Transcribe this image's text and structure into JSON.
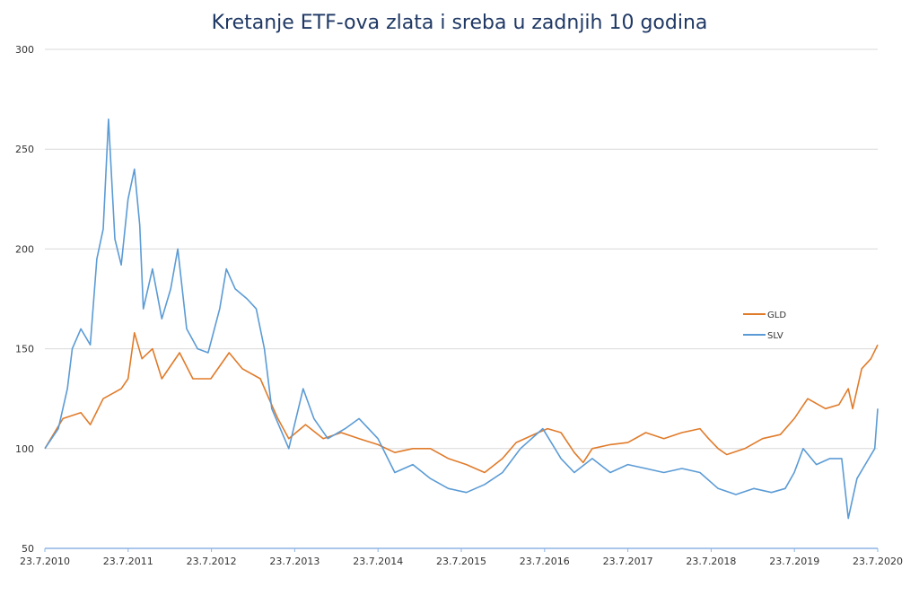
{
  "chart_data": {
    "type": "line",
    "title": "Kretanje ETF-ova zlata i sreba u zadnjih 10 godina",
    "xlabel": "",
    "ylabel": "",
    "ylim": [
      50,
      300
    ],
    "yticks": [
      "50",
      "100",
      "150",
      "200",
      "250",
      "300"
    ],
    "xlim": [
      "2010-07-23",
      "2020-07-23"
    ],
    "xticks": [
      "23.7.2010",
      "23.7.2011",
      "23.7.2012",
      "23.7.2013",
      "23.7.2014",
      "23.7.2015",
      "23.7.2016",
      "23.7.2017",
      "23.7.2018",
      "23.7.2019",
      "23.7.2020"
    ],
    "grid": "horizontal",
    "legend_position": "right",
    "series": [
      {
        "name": "GLD",
        "color": "#e07b2a",
        "points": [
          [
            "2010-07-23",
            100
          ],
          [
            "2010-10-10",
            115
          ],
          [
            "2010-12-28",
            118
          ],
          [
            "2011-02-07",
            112
          ],
          [
            "2011-04-05",
            125
          ],
          [
            "2011-06-23",
            130
          ],
          [
            "2011-07-23",
            135
          ],
          [
            "2011-08-20",
            158
          ],
          [
            "2011-09-22",
            145
          ],
          [
            "2011-11-07",
            150
          ],
          [
            "2011-12-18",
            135
          ],
          [
            "2012-03-05",
            148
          ],
          [
            "2012-05-02",
            135
          ],
          [
            "2012-07-20",
            135
          ],
          [
            "2012-10-08",
            148
          ],
          [
            "2012-12-05",
            140
          ],
          [
            "2013-02-22",
            135
          ],
          [
            "2013-04-01",
            125
          ],
          [
            "2013-05-10",
            115
          ],
          [
            "2013-06-27",
            105
          ],
          [
            "2013-09-08",
            112
          ],
          [
            "2013-11-25",
            105
          ],
          [
            "2014-02-12",
            108
          ],
          [
            "2014-05-01",
            105
          ],
          [
            "2014-07-23",
            102
          ],
          [
            "2014-10-05",
            98
          ],
          [
            "2014-12-23",
            100
          ],
          [
            "2015-03-10",
            100
          ],
          [
            "2015-05-28",
            95
          ],
          [
            "2015-08-15",
            92
          ],
          [
            "2015-11-03",
            88
          ],
          [
            "2016-01-20",
            95
          ],
          [
            "2016-03-20",
            103
          ],
          [
            "2016-06-25",
            108
          ],
          [
            "2016-08-05",
            110
          ],
          [
            "2016-10-03",
            108
          ],
          [
            "2016-11-30",
            98
          ],
          [
            "2017-01-08",
            93
          ],
          [
            "2017-02-17",
            100
          ],
          [
            "2017-05-07",
            102
          ],
          [
            "2017-07-23",
            103
          ],
          [
            "2017-10-10",
            108
          ],
          [
            "2017-12-28",
            105
          ],
          [
            "2018-03-17",
            108
          ],
          [
            "2018-06-04",
            110
          ],
          [
            "2018-07-12",
            105
          ],
          [
            "2018-08-23",
            100
          ],
          [
            "2018-09-30",
            97
          ],
          [
            "2018-12-18",
            100
          ],
          [
            "2019-03-06",
            105
          ],
          [
            "2019-05-23",
            107
          ],
          [
            "2019-07-23",
            115
          ],
          [
            "2019-09-20",
            125
          ],
          [
            "2019-12-07",
            120
          ],
          [
            "2020-02-04",
            122
          ],
          [
            "2020-03-16",
            130
          ],
          [
            "2020-04-04",
            120
          ],
          [
            "2020-05-14",
            140
          ],
          [
            "2020-06-23",
            145
          ],
          [
            "2020-07-23",
            152
          ]
        ]
      },
      {
        "name": "SLV",
        "color": "#5b9bd5",
        "points": [
          [
            "2010-07-23",
            100
          ],
          [
            "2010-09-20",
            110
          ],
          [
            "2010-10-30",
            130
          ],
          [
            "2010-11-20",
            150
          ],
          [
            "2010-12-28",
            160
          ],
          [
            "2011-02-07",
            152
          ],
          [
            "2011-03-08",
            195
          ],
          [
            "2011-04-05",
            210
          ],
          [
            "2011-04-28",
            265
          ],
          [
            "2011-05-26",
            205
          ],
          [
            "2011-06-23",
            192
          ],
          [
            "2011-07-23",
            225
          ],
          [
            "2011-08-20",
            240
          ],
          [
            "2011-09-12",
            212
          ],
          [
            "2011-09-28",
            170
          ],
          [
            "2011-11-07",
            190
          ],
          [
            "2011-12-18",
            165
          ],
          [
            "2012-01-26",
            180
          ],
          [
            "2012-02-26",
            200
          ],
          [
            "2012-04-05",
            160
          ],
          [
            "2012-05-23",
            150
          ],
          [
            "2012-07-08",
            148
          ],
          [
            "2012-08-28",
            170
          ],
          [
            "2012-09-26",
            190
          ],
          [
            "2012-11-04",
            180
          ],
          [
            "2012-12-26",
            175
          ],
          [
            "2013-02-04",
            170
          ],
          [
            "2013-03-12",
            150
          ],
          [
            "2013-04-13",
            120
          ],
          [
            "2013-06-27",
            100
          ],
          [
            "2013-08-29",
            130
          ],
          [
            "2013-10-15",
            115
          ],
          [
            "2013-12-15",
            105
          ],
          [
            "2014-03-01",
            110
          ],
          [
            "2014-05-01",
            115
          ],
          [
            "2014-07-23",
            105
          ],
          [
            "2014-10-05",
            88
          ],
          [
            "2014-12-23",
            92
          ],
          [
            "2015-03-10",
            85
          ],
          [
            "2015-05-28",
            80
          ],
          [
            "2015-08-15",
            78
          ],
          [
            "2015-11-03",
            82
          ],
          [
            "2016-01-20",
            88
          ],
          [
            "2016-04-08",
            100
          ],
          [
            "2016-07-15",
            110
          ],
          [
            "2016-10-03",
            95
          ],
          [
            "2016-11-30",
            88
          ],
          [
            "2017-02-17",
            95
          ],
          [
            "2017-05-07",
            88
          ],
          [
            "2017-07-23",
            92
          ],
          [
            "2017-10-10",
            90
          ],
          [
            "2017-12-28",
            88
          ],
          [
            "2018-03-17",
            90
          ],
          [
            "2018-06-04",
            88
          ],
          [
            "2018-08-23",
            80
          ],
          [
            "2018-11-09",
            77
          ],
          [
            "2019-01-27",
            80
          ],
          [
            "2019-04-14",
            78
          ],
          [
            "2019-06-13",
            80
          ],
          [
            "2019-07-23",
            88
          ],
          [
            "2019-08-31",
            100
          ],
          [
            "2019-10-28",
            92
          ],
          [
            "2019-12-26",
            95
          ],
          [
            "2020-02-16",
            95
          ],
          [
            "2020-03-16",
            65
          ],
          [
            "2020-04-23",
            85
          ],
          [
            "2020-06-14",
            95
          ],
          [
            "2020-07-10",
            100
          ],
          [
            "2020-07-23",
            120
          ]
        ]
      }
    ]
  }
}
